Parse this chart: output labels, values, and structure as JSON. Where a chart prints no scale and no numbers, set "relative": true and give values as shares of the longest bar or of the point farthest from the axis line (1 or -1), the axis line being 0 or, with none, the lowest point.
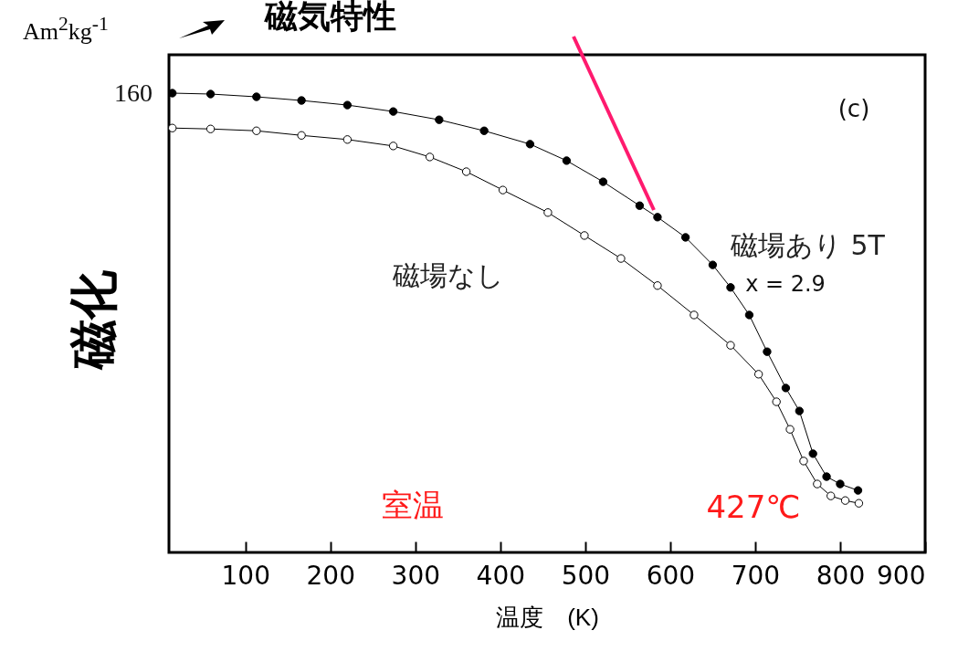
{
  "chart_data": {
    "type": "line",
    "title": "磁気特性",
    "xlabel": "温度　(K)",
    "ylabel": "磁化",
    "relative": true,
    "marker": "circle",
    "grid": false,
    "xlim": [
      10,
      900
    ],
    "xticks": [
      100,
      200,
      300,
      400,
      500,
      600,
      700,
      800,
      900
    ],
    "annotations": [
      "Am$^{2}$kg$^{-1}$",
      "160",
      "(c)",
      "x = 2.9",
      "室温",
      "427℃"
    ],
    "series": [
      {
        "name": "磁場あり 5T",
        "color": "#000000",
        "x": [
          14,
          59,
          113,
          166,
          220,
          274,
          328,
          381,
          435,
          478,
          521,
          564,
          585,
          618,
          650,
          671,
          693,
          714,
          736,
          752,
          768,
          784,
          800,
          821
        ],
        "values": [
          1.0,
          0.998,
          0.992,
          0.984,
          0.974,
          0.96,
          0.942,
          0.918,
          0.889,
          0.853,
          0.807,
          0.755,
          0.73,
          0.686,
          0.626,
          0.577,
          0.517,
          0.437,
          0.358,
          0.308,
          0.215,
          0.165,
          0.149,
          0.135
        ]
      },
      {
        "name": "磁場なし",
        "color": "#ffffff",
        "x": [
          14,
          59,
          113,
          166,
          220,
          274,
          317,
          360,
          403,
          456,
          499,
          542,
          585,
          628,
          671,
          704,
          725,
          741,
          757,
          773,
          789,
          806,
          822
        ],
        "values": [
          0.924,
          0.922,
          0.918,
          0.908,
          0.899,
          0.885,
          0.861,
          0.829,
          0.789,
          0.74,
          0.69,
          0.64,
          0.581,
          0.517,
          0.451,
          0.388,
          0.328,
          0.268,
          0.199,
          0.149,
          0.123,
          0.113,
          0.107
        ]
      }
    ]
  }
}
